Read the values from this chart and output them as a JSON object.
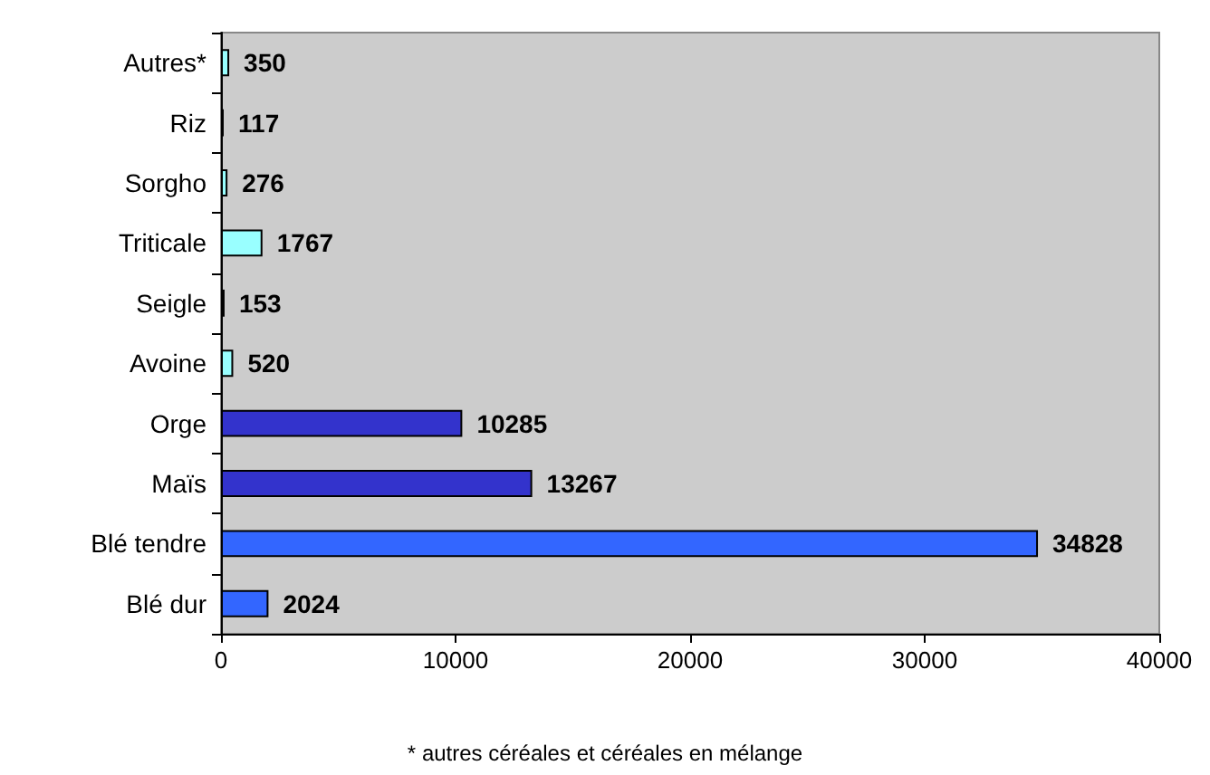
{
  "chart_data": {
    "type": "bar",
    "orientation": "horizontal",
    "categories": [
      "Autres*",
      "Riz",
      "Sorgho",
      "Triticale",
      "Seigle",
      "Avoine",
      "Orge",
      "Maïs",
      "Blé tendre",
      "Blé dur"
    ],
    "values": [
      350,
      117,
      276,
      1767,
      153,
      520,
      10285,
      13267,
      34828,
      2024
    ],
    "colors": [
      "#99ffff",
      "#99ffff",
      "#99ffff",
      "#99ffff",
      "#99ffff",
      "#99ffff",
      "#3333cc",
      "#3333cc",
      "#3366ff",
      "#3366ff"
    ],
    "xlim": [
      0,
      40000
    ],
    "xticks": [
      0,
      10000,
      20000,
      30000,
      40000
    ],
    "data_labels": true,
    "grid": false,
    "annotations": [
      "* autres céréales et céréales en mélange"
    ]
  }
}
